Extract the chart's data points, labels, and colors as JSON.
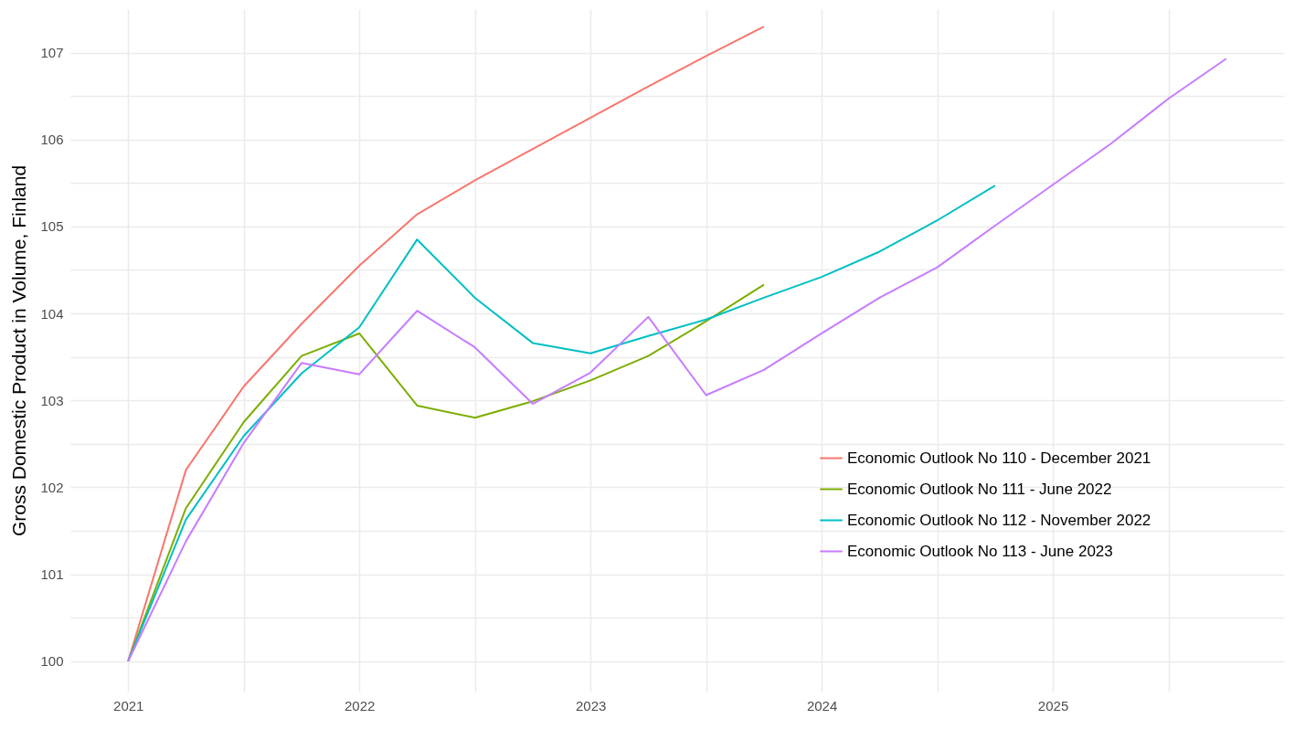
{
  "chart_data": {
    "type": "line",
    "ylabel": "Gross Domestic Product in Volume, Finland",
    "xlim": [
      2020.75,
      2026
    ],
    "ylim": [
      99.65,
      107.5
    ],
    "xticks": [
      2021,
      {
        "value": 2021.5,
        "label": null
      },
      2022,
      {
        "value": 2022.5,
        "label": null
      },
      2023,
      {
        "value": 2023.5,
        "label": null
      },
      2024,
      {
        "value": 2024.5,
        "label": null
      },
      2025,
      {
        "value": 2025.5,
        "label": null
      }
    ],
    "yticks": [
      100,
      {
        "value": 100.5,
        "label": null
      },
      101,
      {
        "value": 101.5,
        "label": null
      },
      102,
      {
        "value": 102.5,
        "label": null
      },
      103,
      {
        "value": 103.5,
        "label": null
      },
      104,
      {
        "value": 104.5,
        "label": null
      },
      105,
      {
        "value": 105.5,
        "label": null
      },
      106,
      {
        "value": 106.5,
        "label": null
      },
      107
    ],
    "grid": true,
    "legend": "bottom right",
    "line_style": "solid",
    "marker": "none",
    "x": [
      2021,
      2021.25,
      2021.5,
      2021.75,
      2022,
      2022.25,
      2022.5,
      2022.75,
      2023,
      2023.25,
      2023.5,
      2023.75,
      2024,
      2024.25,
      2024.5,
      2024.75,
      2025,
      2025.25,
      2025.5,
      2025.75
    ],
    "series": [
      {
        "name": "Economic Outlook No 110 - December 2021",
        "color": "#f8766d",
        "values": [
          100,
          102.2,
          103.16,
          103.88,
          104.55,
          105.14,
          105.53,
          105.89,
          106.25,
          106.61,
          106.96,
          107.3,
          null,
          null,
          null,
          null,
          null,
          null,
          null,
          null
        ]
      },
      {
        "name": "Economic Outlook No 111 - June 2022",
        "color": "#7cae00",
        "values": [
          100,
          101.76,
          102.75,
          103.51,
          103.77,
          102.94,
          102.8,
          102.99,
          103.23,
          103.51,
          103.91,
          104.33,
          null,
          null,
          null,
          null,
          null,
          null,
          null,
          null
        ]
      },
      {
        "name": "Economic Outlook No 112 - November 2022",
        "color": "#00bfc4",
        "values": [
          100,
          101.63,
          102.59,
          103.31,
          103.84,
          104.85,
          104.18,
          103.66,
          103.54,
          103.74,
          103.93,
          104.18,
          104.42,
          104.71,
          105.07,
          105.47,
          null,
          null,
          null,
          null
        ]
      },
      {
        "name": "Economic Outlook No 113 - June 2023",
        "color": "#c77cff",
        "values": [
          100,
          101.38,
          102.51,
          103.43,
          103.3,
          104.03,
          103.61,
          102.96,
          103.32,
          103.96,
          103.06,
          103.35,
          103.77,
          104.18,
          104.53,
          105.01,
          105.48,
          105.95,
          106.47,
          106.93
        ]
      }
    ]
  }
}
